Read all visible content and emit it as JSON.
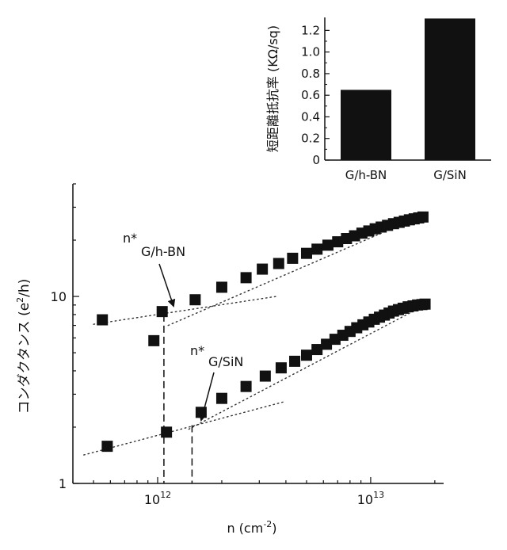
{
  "chart_data": [
    {
      "type": "bar",
      "ylabel": "短距離抵抗率 (KΩ/sq)",
      "categories": [
        "G/h-BN",
        "G/SiN"
      ],
      "values": [
        0.65,
        1.31
      ],
      "ylim": [
        0,
        1.32
      ],
      "yticks": [
        "0",
        "0.2",
        "0.4",
        "0.6",
        "0.8",
        "1.0",
        "1.2"
      ],
      "grid": false,
      "bar_color": "#111111"
    },
    {
      "type": "scatter",
      "xlabel_base": "n (cm",
      "xlabel_exp": "-2",
      "xlabel_tail": ")",
      "ylabel_base": "コンダクタンス (e",
      "ylabel_exp": "2",
      "ylabel_tail": "/h)",
      "xscale": "log",
      "yscale": "log",
      "xlim": [
        400000000000.0,
        22000000000000.0
      ],
      "ylim": [
        1,
        40
      ],
      "xticks": [
        {
          "value": 1000000000000.0,
          "base": "10",
          "exp": "12"
        },
        {
          "value": 10000000000000.0,
          "base": "10",
          "exp": "13"
        }
      ],
      "yticks": [
        {
          "value": 1,
          "label": "1"
        },
        {
          "value": 10,
          "label": "10"
        }
      ],
      "marker_color": "#111111",
      "series": [
        {
          "points": [
            [
              550000000000.0,
              7.5
            ],
            [
              960000000000.0,
              5.8
            ],
            [
              1050000000000.0,
              8.3
            ],
            [
              1500000000000.0,
              9.6
            ],
            [
              2000000000000.0,
              11.2
            ],
            [
              2600000000000.0,
              12.6
            ],
            [
              3100000000000.0,
              14.0
            ],
            [
              3700000000000.0,
              15.0
            ],
            [
              4300000000000.0,
              16.0
            ],
            [
              5000000000000.0,
              17.0
            ],
            [
              5600000000000.0,
              17.9
            ],
            [
              6300000000000.0,
              18.8
            ],
            [
              7000000000000.0,
              19.6
            ],
            [
              7700000000000.0,
              20.4
            ],
            [
              8400000000000.0,
              21.1
            ],
            [
              9100000000000.0,
              21.8
            ],
            [
              9800000000000.0,
              22.4
            ],
            [
              10500000000000.0,
              23.0
            ],
            [
              11200000000000.0,
              23.5
            ],
            [
              12000000000000.0,
              24.0
            ],
            [
              12800000000000.0,
              24.5
            ],
            [
              13600000000000.0,
              24.9
            ],
            [
              14400000000000.0,
              25.3
            ],
            [
              15200000000000.0,
              25.7
            ],
            [
              16000000000000.0,
              26.0
            ],
            [
              16800000000000.0,
              26.3
            ],
            [
              17600000000000.0,
              26.6
            ]
          ],
          "fit_low": [
            [
              500000000000.0,
              7.1
            ],
            [
              3600000000000.0,
              10.0
            ]
          ],
          "fit_high": [
            [
              1120000000000.0,
              7.0
            ],
            [
              18000000000000.0,
              27.5
            ]
          ],
          "annotation_star": "n*",
          "annotation_label": "G/h-BN",
          "n_star": 1070000000000.0
        },
        {
          "points": [
            [
              580000000000.0,
              1.58
            ],
            [
              1100000000000.0,
              1.88
            ],
            [
              1600000000000.0,
              2.4
            ],
            [
              2000000000000.0,
              2.85
            ],
            [
              2600000000000.0,
              3.3
            ],
            [
              3200000000000.0,
              3.75
            ],
            [
              3800000000000.0,
              4.15
            ],
            [
              4400000000000.0,
              4.5
            ],
            [
              5000000000000.0,
              4.85
            ],
            [
              5600000000000.0,
              5.2
            ],
            [
              6200000000000.0,
              5.55
            ],
            [
              6800000000000.0,
              5.9
            ],
            [
              7400000000000.0,
              6.2
            ],
            [
              8000000000000.0,
              6.5
            ],
            [
              8600000000000.0,
              6.8
            ],
            [
              9200000000000.0,
              7.05
            ],
            [
              9800000000000.0,
              7.3
            ],
            [
              10400000000000.0,
              7.55
            ],
            [
              11000000000000.0,
              7.75
            ],
            [
              11600000000000.0,
              7.95
            ],
            [
              12200000000000.0,
              8.15
            ],
            [
              12800000000000.0,
              8.35
            ],
            [
              13500000000000.0,
              8.5
            ],
            [
              14200000000000.0,
              8.65
            ],
            [
              15000000000000.0,
              8.8
            ],
            [
              15800000000000.0,
              8.9
            ],
            [
              16600000000000.0,
              9.0
            ],
            [
              17400000000000.0,
              9.05
            ],
            [
              18000000000000.0,
              9.1
            ]
          ],
          "fit_low": [
            [
              450000000000.0,
              1.42
            ],
            [
              4000000000000.0,
              2.75
            ]
          ],
          "fit_high": [
            [
              1400000000000.0,
              1.95
            ],
            [
              18000000000000.0,
              9.0
            ]
          ],
          "annotation_star": "n*",
          "annotation_label": "G/SiN",
          "n_star": 1450000000000.0
        }
      ]
    }
  ]
}
